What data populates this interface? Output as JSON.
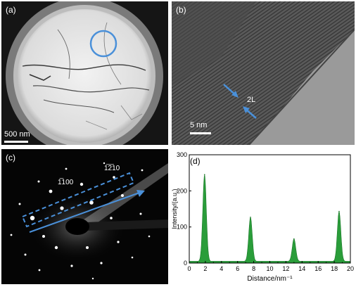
{
  "panels": {
    "a": {
      "label": "(a)",
      "scalebar": "500 nm"
    },
    "b": {
      "label": "(b)",
      "scalebar": "5 nm",
      "annotation": "2L"
    },
    "c": {
      "label": "(c)",
      "spot_label_1": "1̅2̅10",
      "spot_label_2": "1̅100"
    },
    "d": {
      "label": "(d)"
    }
  },
  "colors": {
    "accent": "#4a90d9",
    "plot_fill": "#2a9d3a"
  },
  "chart_data": {
    "type": "area",
    "xlabel": "Distance/nm⁻¹",
    "ylabel": "Intensity/(a.u.)",
    "xlim": [
      0,
      20
    ],
    "ylim": [
      0,
      300
    ],
    "xticks": [
      0,
      2,
      4,
      6,
      8,
      10,
      12,
      14,
      16,
      18,
      20
    ],
    "yticks": [
      0,
      100,
      200,
      300
    ],
    "peaks": [
      {
        "x": 1.9,
        "y": 245
      },
      {
        "x": 7.6,
        "y": 127
      },
      {
        "x": 13.0,
        "y": 67
      },
      {
        "x": 18.6,
        "y": 143
      }
    ],
    "baseline": 5
  }
}
